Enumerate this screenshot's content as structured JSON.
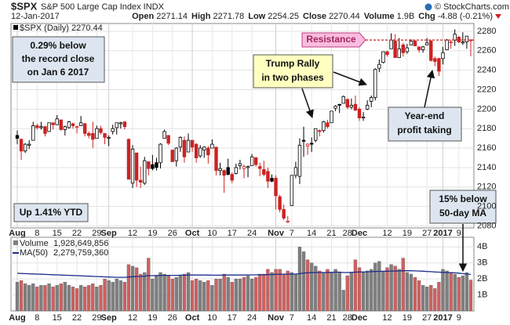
{
  "chart_data": [
    {
      "type": "candlestick",
      "title": "$SPX",
      "subtitle": "S&P 500 Large Cap Index INDX",
      "credit": "© StockCharts.com",
      "date": "12-Jan-2017",
      "quote": [
        {
          "label": "Open",
          "value": "2271.14"
        },
        {
          "label": "High",
          "value": "2271.78"
        },
        {
          "label": "Low",
          "value": "2254.25"
        },
        {
          "label": "Close",
          "value": "2270.44"
        },
        {
          "label": "Volume",
          "value": "1.9B"
        },
        {
          "label": "Chg",
          "value": "-4.88 (-0.21%)"
        }
      ],
      "legend": "$SPX (Daily) 2270.44",
      "categories": [
        "Aug",
        null,
        null,
        null,
        null,
        "8",
        null,
        null,
        null,
        null,
        "15",
        null,
        null,
        null,
        null,
        "22",
        null,
        null,
        null,
        null,
        "29",
        null,
        null,
        "Sep",
        null,
        null,
        null,
        null,
        null,
        "12",
        null,
        null,
        null,
        null,
        "19",
        null,
        null,
        null,
        null,
        "26",
        null,
        null,
        null,
        null,
        "Oct",
        null,
        null,
        null,
        null,
        "10",
        null,
        null,
        null,
        null,
        "17",
        null,
        null,
        null,
        null,
        "24",
        null,
        null,
        null,
        null,
        null,
        "Nov",
        null,
        null,
        null,
        "7",
        null,
        null,
        null,
        null,
        "14",
        null,
        null,
        null,
        null,
        "21",
        null,
        null,
        null,
        "28",
        null,
        null,
        "Dec",
        null,
        null,
        null,
        null,
        null,
        null,
        "12",
        null,
        null,
        null,
        null,
        "19",
        null,
        null,
        null,
        null,
        "27",
        null,
        null,
        null,
        "2017",
        null,
        null,
        null,
        "9",
        null,
        null,
        null
      ],
      "open": [
        2173,
        2169,
        2157,
        2163,
        2168,
        2183,
        2181,
        2182,
        2177,
        2186,
        2184,
        2189,
        2179,
        2181,
        2185,
        2182,
        2183,
        2185,
        2175,
        2175,
        2170,
        2180,
        2175,
        2171,
        2177,
        2181,
        2185,
        2187,
        2169,
        2124,
        2155,
        2127,
        2124,
        2146,
        2143,
        2145,
        2145,
        2170,
        2173,
        2158,
        2147,
        2161,
        2168,
        2156,
        2168,
        2164,
        2152,
        2158,
        2160,
        2160,
        2161,
        2137,
        2137,
        2140,
        2133,
        2134,
        2142,
        2139,
        2140,
        2142,
        2150,
        2141,
        2138,
        2136,
        2129,
        2129,
        2110,
        2097,
        2084,
        2101,
        2132,
        2131,
        2168,
        2162,
        2165,
        2168,
        2178,
        2178,
        2186,
        2186,
        2201,
        2205,
        2206,
        2210,
        2202,
        2205,
        2200,
        2191,
        2200,
        2208,
        2212,
        2242,
        2248,
        2259,
        2262,
        2270,
        2253,
        2266,
        2259,
        2266,
        2270,
        2264,
        2261,
        2266,
        2270,
        2252,
        2252,
        2252,
        2261,
        2269,
        2271,
        2274,
        2268,
        2269,
        2271.14
      ],
      "high": [
        2178,
        2170,
        2165,
        2168,
        2187,
        2185,
        2187,
        2183,
        2186,
        2186,
        2194,
        2189,
        2183,
        2188,
        2186,
        2183,
        2193,
        2186,
        2177,
        2187,
        2183,
        2183,
        2175,
        2173,
        2184,
        2186,
        2187,
        2187,
        2170,
        2163,
        2155,
        2141,
        2151,
        2146,
        2153,
        2150,
        2165,
        2179,
        2173,
        2158,
        2161,
        2172,
        2172,
        2175,
        2168,
        2165,
        2163,
        2162,
        2162,
        2169,
        2161,
        2145,
        2138,
        2149,
        2135,
        2144,
        2148,
        2143,
        2142,
        2154,
        2151,
        2145,
        2147,
        2140,
        2133,
        2132,
        2112,
        2102,
        2090,
        2132,
        2146,
        2170,
        2182,
        2165,
        2171,
        2180,
        2179,
        2188,
        2189,
        2198,
        2204,
        2205,
        2214,
        2211,
        2211,
        2214,
        2202,
        2197,
        2209,
        2214,
        2242,
        2251,
        2259,
        2260,
        2278,
        2277,
        2273,
        2268,
        2267,
        2272,
        2271,
        2264,
        2265,
        2273,
        2271,
        2254,
        2253,
        2264,
        2272,
        2271,
        2282,
        2275,
        2279,
        2275,
        2271.78
      ],
      "low": [
        2164,
        2148,
        2155,
        2159,
        2168,
        2179,
        2179,
        2172,
        2177,
        2179,
        2184,
        2178,
        2173,
        2180,
        2180,
        2175,
        2183,
        2172,
        2170,
        2160,
        2170,
        2174,
        2164,
        2162,
        2174,
        2174,
        2180,
        2179,
        2128,
        2119,
        2120,
        2119,
        2122,
        2132,
        2137,
        2137,
        2139,
        2170,
        2163,
        2146,
        2141,
        2156,
        2145,
        2156,
        2156,
        2145,
        2150,
        2150,
        2144,
        2160,
        2132,
        2132,
        2114,
        2132,
        2124,
        2133,
        2138,
        2129,
        2130,
        2142,
        2141,
        2131,
        2131,
        2119,
        2125,
        2097,
        2094,
        2086,
        2083,
        2101,
        2129,
        2123,
        2151,
        2153,
        2156,
        2166,
        2172,
        2176,
        2180,
        2186,
        2198,
        2196,
        2206,
        2200,
        2200,
        2198,
        2188,
        2188,
        2199,
        2202,
        2209,
        2238,
        2247,
        2254,
        2262,
        2253,
        2253,
        2254,
        2257,
        2266,
        2265,
        2258,
        2258,
        2266,
        2249,
        2244,
        2234,
        2246,
        2261,
        2262,
        2265,
        2268,
        2266,
        2262,
        2254.25
      ],
      "close": [
        2170,
        2157,
        2164,
        2164,
        2183,
        2181,
        2182,
        2175,
        2186,
        2184,
        2190,
        2179,
        2182,
        2187,
        2183,
        2182,
        2186,
        2175,
        2173,
        2169,
        2180,
        2176,
        2171,
        2171,
        2180,
        2186,
        2186,
        2182,
        2128,
        2159,
        2127,
        2125,
        2147,
        2139,
        2139,
        2140,
        2164,
        2177,
        2165,
        2146,
        2160,
        2171,
        2151,
        2168,
        2161,
        2150,
        2160,
        2161,
        2153,
        2164,
        2137,
        2139,
        2132,
        2133,
        2127,
        2140,
        2144,
        2141,
        2141,
        2151,
        2143,
        2139,
        2133,
        2126,
        2126,
        2111,
        2097,
        2088,
        2085,
        2132,
        2140,
        2163,
        2167,
        2164,
        2164,
        2180,
        2177,
        2187,
        2182,
        2198,
        2203,
        2204,
        2213,
        2202,
        2204,
        2199,
        2191,
        2192,
        2204,
        2212,
        2241,
        2246,
        2259,
        2256,
        2271,
        2253,
        2262,
        2258,
        2263,
        2270,
        2265,
        2261,
        2264,
        2268,
        2250,
        2249,
        2239,
        2258,
        2271,
        2269,
        2277,
        2269,
        2269,
        2275,
        2270.44
      ],
      "up_color": "#000000",
      "down_color": "#cc2222",
      "ylim": [
        2078,
        2288
      ],
      "yticks": [
        2080,
        2100,
        2120,
        2140,
        2160,
        2180,
        2200,
        2220,
        2240,
        2260,
        2280
      ],
      "grid": true,
      "resistance": {
        "label": "Resistance",
        "value": 2271,
        "color": "#d02020"
      },
      "annotations": [
        {
          "lines": [
            "0.29% below",
            "the record close",
            "on Jan 6 2017"
          ]
        },
        {
          "lines": [
            "Up 1.41% YTD"
          ]
        },
        {
          "lines": [
            "Trump Rally",
            "in two phases"
          ]
        },
        {
          "lines": [
            "Year-end",
            "profit taking"
          ]
        },
        {
          "lines": [
            "15% below",
            "50-day MA"
          ]
        }
      ]
    },
    {
      "type": "bar",
      "categories": [
        "Aug",
        null,
        null,
        null,
        null,
        "8",
        null,
        null,
        null,
        null,
        "15",
        null,
        null,
        null,
        null,
        "22",
        null,
        null,
        null,
        null,
        "29",
        null,
        null,
        "Sep",
        null,
        null,
        null,
        null,
        null,
        "12",
        null,
        null,
        null,
        null,
        "19",
        null,
        null,
        null,
        null,
        "26",
        null,
        null,
        null,
        null,
        "Oct",
        null,
        null,
        null,
        null,
        "10",
        null,
        null,
        null,
        null,
        "17",
        null,
        null,
        null,
        null,
        "24",
        null,
        null,
        null,
        null,
        null,
        "Nov",
        null,
        null,
        null,
        "7",
        null,
        null,
        null,
        null,
        "14",
        null,
        null,
        null,
        null,
        "21",
        null,
        null,
        null,
        "28",
        null,
        null,
        "Dec",
        null,
        null,
        null,
        null,
        null,
        null,
        "12",
        null,
        null,
        null,
        null,
        "19",
        null,
        null,
        null,
        null,
        "27",
        null,
        null,
        null,
        "2017",
        null,
        null,
        null,
        "9",
        null,
        null,
        null
      ],
      "series": [
        {
          "name": "Volume",
          "legend_value": "1,928,649,856",
          "up_color": "#7f7f7f",
          "down_color": "#d06060",
          "values": [
            1.8,
            1.9,
            1.7,
            1.6,
            1.7,
            1.5,
            1.6,
            1.6,
            1.7,
            1.5,
            1.6,
            1.7,
            1.8,
            1.6,
            1.5,
            1.4,
            1.6,
            1.5,
            1.6,
            1.7,
            1.5,
            1.6,
            2.0,
            1.9,
            1.8,
            2.0,
            1.9,
            1.8,
            2.9,
            2.8,
            2.7,
            2.3,
            2.4,
            3.3,
            2.0,
            2.2,
            2.4,
            2.3,
            2.2,
            2.0,
            2.1,
            2.2,
            2.3,
            2.4,
            1.9,
            2.0,
            1.9,
            1.8,
            1.9,
            1.6,
            2.0,
            2.0,
            2.3,
            2.1,
            1.8,
            2.0,
            2.0,
            2.1,
            2.2,
            2.0,
            2.1,
            2.3,
            2.3,
            2.6,
            2.4,
            2.6,
            2.6,
            2.3,
            2.5,
            2.4,
            2.3,
            4.0,
            3.7,
            3.2,
            3.0,
            2.8,
            2.5,
            2.4,
            2.6,
            2.4,
            2.6,
            2.4,
            1.3,
            2.2,
            2.4,
            3.2,
            2.7,
            2.4,
            2.5,
            2.6,
            3.0,
            3.1,
            2.5,
            2.7,
            2.9,
            2.8,
            2.6,
            3.3,
            2.4,
            2.3,
            2.1,
            1.9,
            1.6,
            1.5,
            1.6,
            1.4,
            1.8,
            2.6,
            2.5,
            2.4,
            2.3,
            2.1,
            2.2,
            2.4,
            1.93
          ]
        },
        {
          "name": "MA(50)",
          "legend_value": "2,279,759,360",
          "type": "line",
          "color": "#1c2d8c",
          "values": [
            2.35,
            2.34,
            2.33,
            2.32,
            2.31,
            2.3,
            2.29,
            2.28,
            2.27,
            2.26,
            2.25,
            2.24,
            2.23,
            2.22,
            2.21,
            2.2,
            2.19,
            2.18,
            2.17,
            2.16,
            2.15,
            2.14,
            2.13,
            2.12,
            2.11,
            2.1,
            2.1,
            2.1,
            2.12,
            2.14,
            2.15,
            2.16,
            2.17,
            2.2,
            2.2,
            2.21,
            2.22,
            2.22,
            2.22,
            2.22,
            2.22,
            2.23,
            2.23,
            2.24,
            2.24,
            2.24,
            2.24,
            2.24,
            2.24,
            2.23,
            2.23,
            2.23,
            2.24,
            2.24,
            2.24,
            2.24,
            2.24,
            2.24,
            2.25,
            2.25,
            2.25,
            2.26,
            2.26,
            2.27,
            2.27,
            2.28,
            2.29,
            2.29,
            2.3,
            2.3,
            2.3,
            2.33,
            2.36,
            2.38,
            2.39,
            2.4,
            2.4,
            2.4,
            2.41,
            2.41,
            2.42,
            2.42,
            2.4,
            2.4,
            2.41,
            2.42,
            2.43,
            2.43,
            2.44,
            2.45,
            2.46,
            2.47,
            2.47,
            2.48,
            2.49,
            2.49,
            2.5,
            2.51,
            2.51,
            2.51,
            2.5,
            2.49,
            2.48,
            2.46,
            2.45,
            2.43,
            2.42,
            2.41,
            2.4,
            2.39,
            2.38,
            2.36,
            2.33,
            2.3,
            2.28
          ]
        }
      ],
      "ylim": [
        0,
        4.6
      ],
      "yticks": [
        {
          "value": 1,
          "label": "1B"
        },
        {
          "value": 2,
          "label": "2B"
        },
        {
          "value": 3,
          "label": "3B"
        },
        {
          "value": 4,
          "label": "4B"
        }
      ],
      "grid": true
    }
  ]
}
